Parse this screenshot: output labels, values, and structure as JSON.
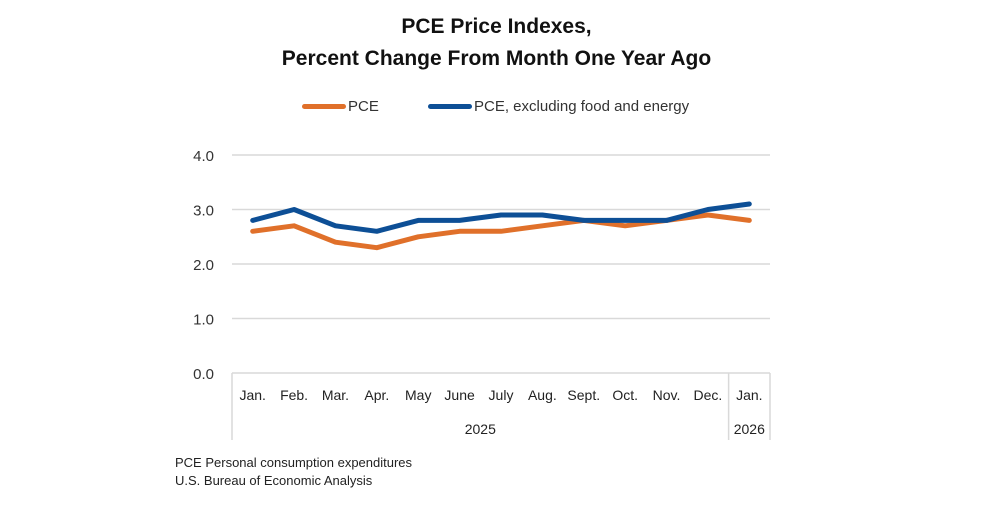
{
  "colors": {
    "pce": "#E0702A",
    "core": "#0D4F96",
    "grid": "#D9D9D9",
    "axis": "#D9D9D9"
  },
  "chart_data": {
    "type": "line",
    "title": "PCE Price Indexes,",
    "subtitle": "Percent Change From Month One Year Ago",
    "xlabel": "",
    "ylabel": "",
    "ylim": [
      0,
      4
    ],
    "yticks": [
      "0.0",
      "1.0",
      "2.0",
      "3.0",
      "4.0"
    ],
    "grid": true,
    "legend_position": "top",
    "categories": [
      "Jan.",
      "Feb.",
      "Mar.",
      "Apr.",
      "May",
      "June",
      "July",
      "Aug.",
      "Sept.",
      "Oct.",
      "Nov.",
      "Dec.",
      "Jan."
    ],
    "year_groups": [
      {
        "label": "2025",
        "count": 12
      },
      {
        "label": "2026",
        "count": 1
      }
    ],
    "series": [
      {
        "name": "PCE",
        "color": "#E0702A",
        "values": [
          2.6,
          2.7,
          2.4,
          2.3,
          2.5,
          2.6,
          2.6,
          2.7,
          2.8,
          2.7,
          2.8,
          2.9,
          2.8
        ]
      },
      {
        "name": "PCE, excluding food and energy",
        "color": "#0D4F96",
        "values": [
          2.8,
          3.0,
          2.7,
          2.6,
          2.8,
          2.8,
          2.9,
          2.9,
          2.8,
          2.8,
          2.8,
          3.0,
          3.1
        ]
      }
    ]
  },
  "legend": {
    "pce_label": "PCE",
    "core_label": "PCE, excluding food and energy"
  },
  "notes": {
    "line1": "PCE Personal consumption expenditures",
    "line2": "U.S. Bureau of Economic Analysis"
  }
}
